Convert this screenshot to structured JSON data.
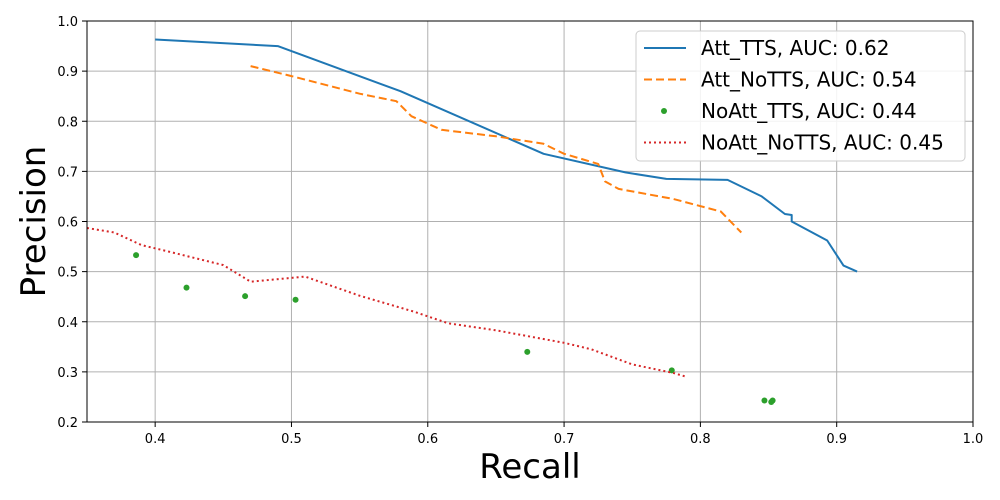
{
  "chart_data": {
    "type": "line",
    "title": "",
    "xlabel": "Recall",
    "ylabel": "Precision",
    "xlim": [
      0.35,
      1.0
    ],
    "ylim": [
      0.2,
      1.0
    ],
    "xticks": [
      "0.4",
      "0.5",
      "0.6",
      "0.7",
      "0.8",
      "0.9",
      "1.0"
    ],
    "yticks": [
      "0.2",
      "0.3",
      "0.4",
      "0.5",
      "0.6",
      "0.7",
      "0.8",
      "0.9",
      "1.0"
    ],
    "grid": true,
    "legend_position": "top-right",
    "series": [
      {
        "name": "Att_TTS, AUC: 0.62",
        "style": "solid",
        "color": "#1f77b4",
        "points": [
          [
            0.4,
            0.963
          ],
          [
            0.49,
            0.95
          ],
          [
            0.58,
            0.86
          ],
          [
            0.685,
            0.735
          ],
          [
            0.745,
            0.698
          ],
          [
            0.775,
            0.685
          ],
          [
            0.82,
            0.683
          ],
          [
            0.845,
            0.65
          ],
          [
            0.862,
            0.615
          ],
          [
            0.867,
            0.613
          ],
          [
            0.867,
            0.6
          ],
          [
            0.893,
            0.562
          ],
          [
            0.905,
            0.512
          ],
          [
            0.915,
            0.5
          ]
        ]
      },
      {
        "name": "Att_NoTTS, AUC: 0.54",
        "style": "dashed",
        "color": "#ff7f0e",
        "points": [
          [
            0.47,
            0.91
          ],
          [
            0.5,
            0.89
          ],
          [
            0.55,
            0.855
          ],
          [
            0.577,
            0.84
          ],
          [
            0.588,
            0.81
          ],
          [
            0.61,
            0.783
          ],
          [
            0.65,
            0.77
          ],
          [
            0.685,
            0.755
          ],
          [
            0.7,
            0.735
          ],
          [
            0.725,
            0.715
          ],
          [
            0.73,
            0.68
          ],
          [
            0.74,
            0.665
          ],
          [
            0.78,
            0.645
          ],
          [
            0.815,
            0.62
          ],
          [
            0.83,
            0.578
          ]
        ]
      },
      {
        "name": "NoAtt_TTS, AUC: 0.44",
        "style": "markers",
        "color": "#2ca02c",
        "points": [
          [
            0.386,
            0.533
          ],
          [
            0.423,
            0.468
          ],
          [
            0.466,
            0.451
          ],
          [
            0.503,
            0.444
          ],
          [
            0.673,
            0.34
          ],
          [
            0.779,
            0.303
          ],
          [
            0.847,
            0.243
          ],
          [
            0.852,
            0.24
          ],
          [
            0.853,
            0.243
          ]
        ]
      },
      {
        "name": "NoAtt_NoTTS, AUC: 0.45",
        "style": "dotted",
        "color": "#d62728",
        "points": [
          [
            0.35,
            0.587
          ],
          [
            0.37,
            0.578
          ],
          [
            0.39,
            0.553
          ],
          [
            0.41,
            0.54
          ],
          [
            0.45,
            0.513
          ],
          [
            0.47,
            0.48
          ],
          [
            0.51,
            0.49
          ],
          [
            0.55,
            0.452
          ],
          [
            0.59,
            0.42
          ],
          [
            0.615,
            0.397
          ],
          [
            0.65,
            0.383
          ],
          [
            0.7,
            0.358
          ],
          [
            0.72,
            0.345
          ],
          [
            0.75,
            0.315
          ],
          [
            0.78,
            0.298
          ],
          [
            0.79,
            0.29
          ]
        ]
      }
    ]
  }
}
